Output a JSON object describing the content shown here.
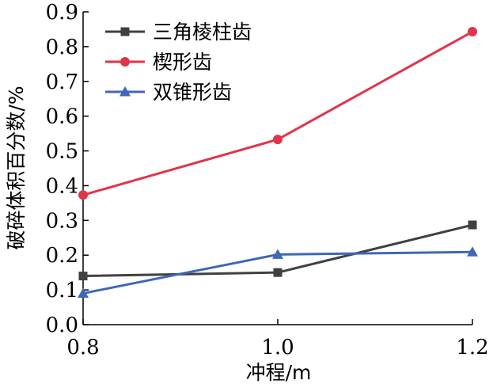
{
  "chart_data": {
    "type": "line",
    "x": [
      0.8,
      1.0,
      1.2
    ],
    "x_tick_labels": [
      "0.8",
      "1.0",
      "1.2"
    ],
    "y_tick_labels": [
      "0.0",
      "0.1",
      "0.2",
      "0.3",
      "0.4",
      "0.5",
      "0.6",
      "0.7",
      "0.8",
      "0.9"
    ],
    "xlim": [
      0.8,
      1.2
    ],
    "ylim": [
      0,
      0.9
    ],
    "xlabel": "冲程/m",
    "ylabel": "破碎体积百分数/%",
    "grid": false,
    "legend_position": "top-left",
    "series": [
      {
        "name": "三角棱柱齿",
        "values": [
          0.14,
          0.15,
          0.287
        ],
        "color": "#404040",
        "marker": "square"
      },
      {
        "name": "楔形齿",
        "values": [
          0.373,
          0.533,
          0.843
        ],
        "color": "#e0354a",
        "marker": "circle"
      },
      {
        "name": "双锥形齿",
        "values": [
          0.09,
          0.202,
          0.209
        ],
        "color": "#3f67b7",
        "marker": "triangle"
      }
    ]
  }
}
